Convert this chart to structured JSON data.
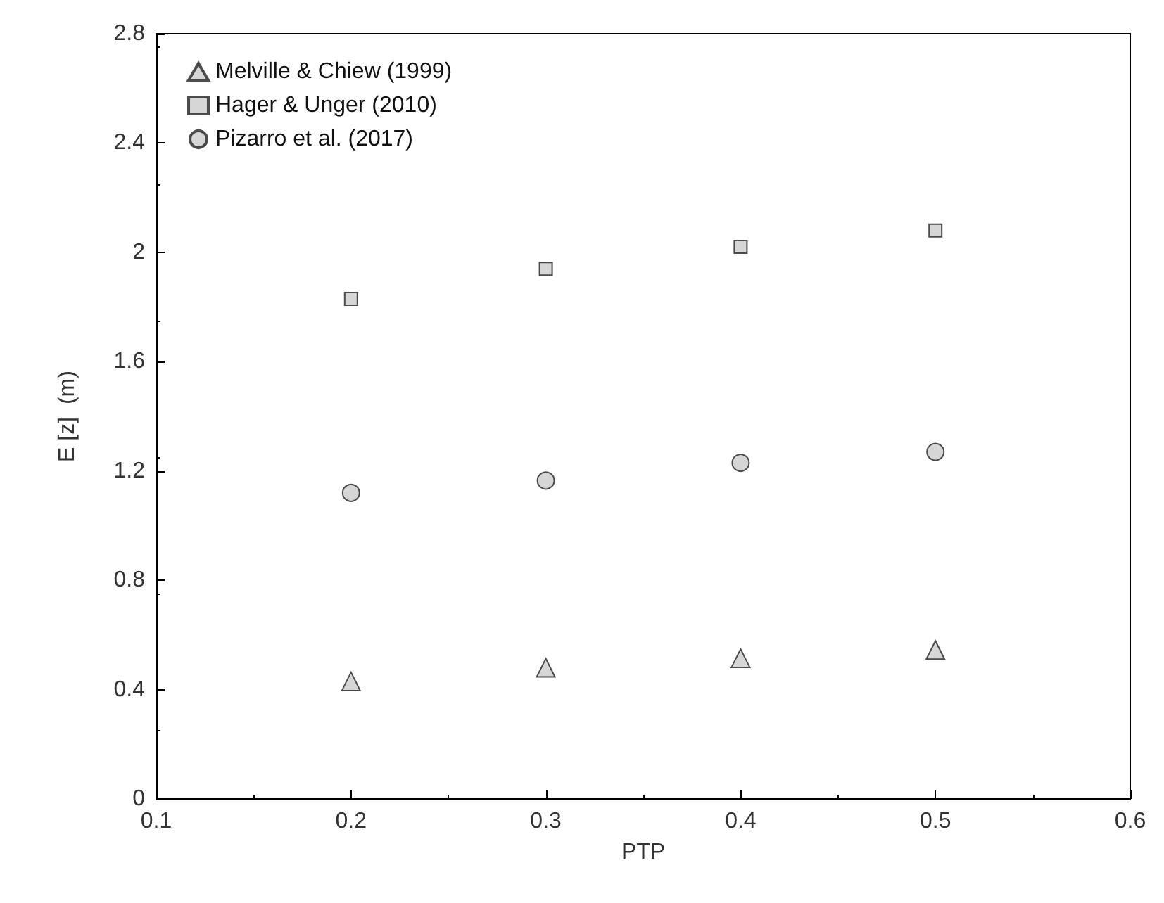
{
  "chart_data": {
    "type": "scatter",
    "xlabel": "PTP",
    "ylabel": "E [z]  (m)",
    "x": [
      0.2,
      0.3,
      0.4,
      0.5
    ],
    "series": [
      {
        "name": "Melville & Chiew (1999)",
        "color": "#cccccc",
        "marker": "triangle",
        "values": [
          0.43,
          0.48,
          0.515,
          0.545
        ]
      },
      {
        "name": "Hager & Unger (2010)",
        "color": "#cccccc",
        "marker": "square",
        "values": [
          1.83,
          1.94,
          2.02,
          2.08
        ]
      },
      {
        "name": "Pizarro et al. (2017)",
        "color": "#cccccc",
        "marker": "circle",
        "values": [
          1.12,
          1.165,
          1.23,
          1.27
        ]
      }
    ],
    "xlim": [
      0.1,
      0.6
    ],
    "xticks": [
      0.1,
      0.2,
      0.3,
      0.4,
      0.5,
      0.6
    ],
    "ylim": [
      0,
      2.8
    ],
    "yticks": [
      0,
      0.4,
      0.8,
      1.2,
      1.6,
      2,
      2.4,
      2.8
    ],
    "grid": false,
    "legend": "top left"
  }
}
